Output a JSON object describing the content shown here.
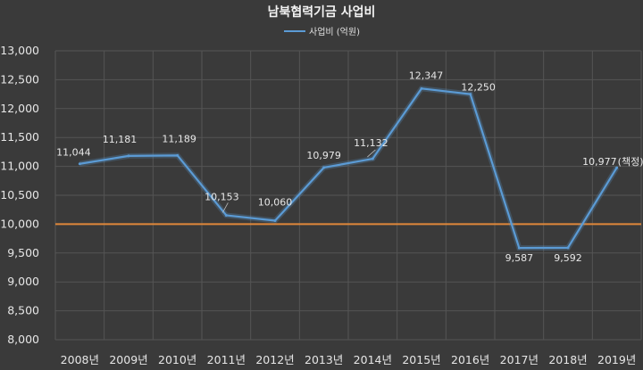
{
  "chart_data": {
    "type": "line",
    "title": "남북협력기금 사업비",
    "legend": "사업비 (억원)",
    "legend_position": "top-center",
    "categories": [
      "2008년",
      "2009년",
      "2010년",
      "2011년",
      "2012년",
      "2013년",
      "2014년",
      "2015년",
      "2016년",
      "2017년",
      "2018년",
      "2019년"
    ],
    "series": [
      {
        "name": "사업비 (억원)",
        "values": [
          11044,
          11181,
          11189,
          10153,
          10060,
          10979,
          11132,
          12347,
          12250,
          9587,
          9592,
          10977
        ],
        "labels": [
          "11,044",
          "11,181",
          "11,189",
          "10,153",
          "10,060",
          "10,979",
          "11,132",
          "12,347",
          "12,250",
          "9,587",
          "9,592",
          "10,977"
        ],
        "color": "#5b9bd5"
      }
    ],
    "extra_label": "(책정)",
    "reference_line": {
      "value": 10000,
      "color": "#e0883a"
    },
    "yticks": [
      "8,000",
      "8,500",
      "9,000",
      "9,500",
      "10,000",
      "10,500",
      "11,000",
      "11,500",
      "12,000",
      "12,500",
      "13,000"
    ],
    "ylim": [
      8000,
      13000
    ],
    "grid": true
  }
}
